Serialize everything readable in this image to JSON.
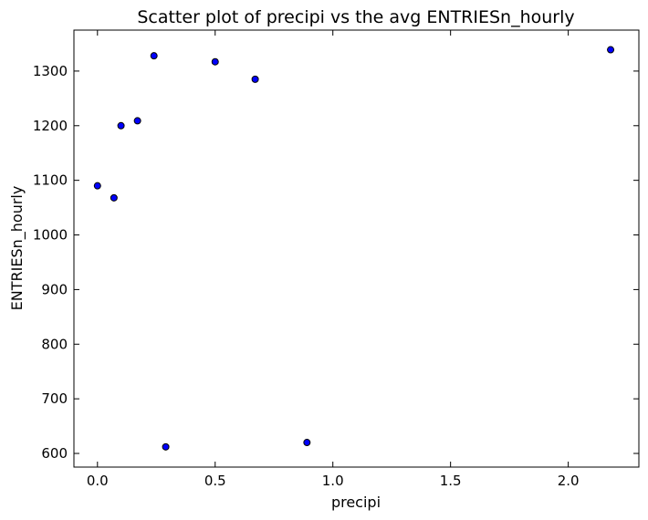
{
  "chart_data": {
    "type": "scatter",
    "title": "Scatter plot of precipi vs the avg ENTRIESn_hourly",
    "xlabel": "precipi",
    "ylabel": "ENTRIESn_hourly",
    "xlim": [
      -0.1,
      2.3
    ],
    "ylim": [
      575,
      1375
    ],
    "xticks": [
      0.0,
      0.5,
      1.0,
      1.5,
      2.0
    ],
    "xtick_labels": [
      "0.0",
      "0.5",
      "1.0",
      "1.5",
      "2.0"
    ],
    "yticks": [
      600,
      700,
      800,
      900,
      1000,
      1100,
      1200,
      1300
    ],
    "ytick_labels": [
      "600",
      "700",
      "800",
      "900",
      "1000",
      "1100",
      "1200",
      "1300"
    ],
    "grid": false,
    "marker_color": "#0000ff",
    "points": [
      {
        "x": 0.0,
        "y": 1090
      },
      {
        "x": 0.07,
        "y": 1068
      },
      {
        "x": 0.1,
        "y": 1200
      },
      {
        "x": 0.17,
        "y": 1209
      },
      {
        "x": 0.24,
        "y": 1328
      },
      {
        "x": 0.29,
        "y": 612
      },
      {
        "x": 0.5,
        "y": 1317
      },
      {
        "x": 0.67,
        "y": 1285
      },
      {
        "x": 0.89,
        "y": 620
      },
      {
        "x": 2.18,
        "y": 1339
      }
    ]
  }
}
